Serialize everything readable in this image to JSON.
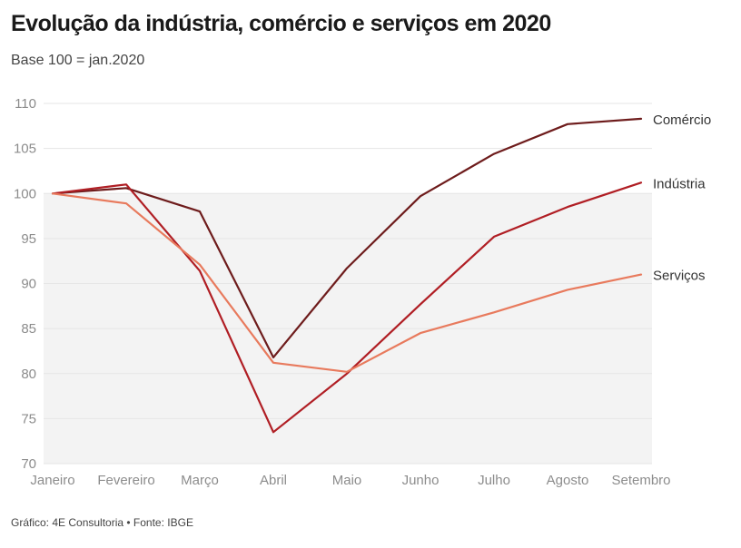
{
  "header": {
    "title": "Evolução da indústria, comércio e serviços em 2020",
    "subtitle": "Base 100 = jan.2020"
  },
  "footer": {
    "source": "Gráfico: 4E Consultoria • Fonte: IBGE"
  },
  "chart_data": {
    "type": "line",
    "title": "Evolução da indústria, comércio e serviços em 2020",
    "subtitle": "Base 100 = jan.2020",
    "categories": [
      "Janeiro",
      "Fevereiro",
      "Março",
      "Abril",
      "Maio",
      "Junho",
      "Julho",
      "Agosto",
      "Setembro"
    ],
    "ylim": [
      70,
      110
    ],
    "yticks": [
      70,
      75,
      80,
      85,
      90,
      95,
      100,
      105,
      110
    ],
    "shaded_band": [
      70,
      100
    ],
    "grid": true,
    "series": [
      {
        "name": "Comércio",
        "color": "#6e1c1c",
        "values": [
          100,
          100.6,
          98,
          81.8,
          91.7,
          99.7,
          104.4,
          107.7,
          108.3
        ]
      },
      {
        "name": "Indústria",
        "color": "#b01e24",
        "values": [
          100,
          101,
          91.4,
          73.5,
          80,
          87.7,
          95.2,
          98.5,
          101.2
        ]
      },
      {
        "name": "Serviços",
        "color": "#e87a5d",
        "values": [
          100,
          98.9,
          92.1,
          81.2,
          80.2,
          84.5,
          86.8,
          89.3,
          91
        ]
      }
    ]
  }
}
